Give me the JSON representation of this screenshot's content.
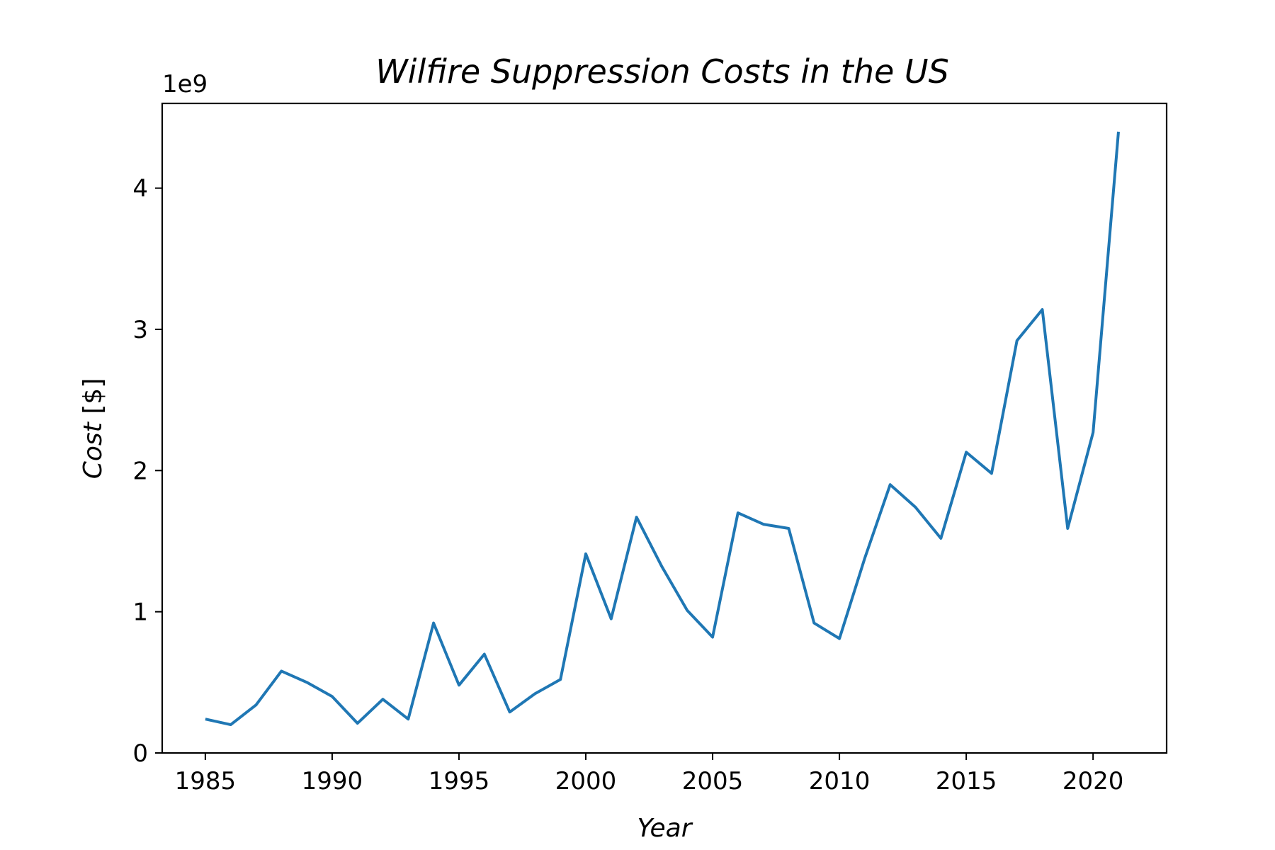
{
  "chart_data": {
    "type": "line",
    "title": "Wilfire Suppression Costs in the US",
    "xlabel": "Year",
    "ylabel_italic": "Cost",
    "ylabel_unit": "[$]",
    "y_offset_label": "1e9",
    "xlim": [
      1983.3,
      2022.9
    ],
    "ylim": [
      0,
      4.6
    ],
    "x_ticks": [
      1985,
      1990,
      1995,
      2000,
      2005,
      2010,
      2015,
      2020
    ],
    "y_ticks": [
      0,
      1,
      2,
      3,
      4
    ],
    "grid": false,
    "color": "#1f77b4",
    "x": [
      1985,
      1986,
      1987,
      1988,
      1989,
      1990,
      1991,
      1992,
      1993,
      1994,
      1995,
      1996,
      1997,
      1998,
      1999,
      2000,
      2001,
      2002,
      2003,
      2004,
      2005,
      2006,
      2007,
      2008,
      2009,
      2010,
      2011,
      2012,
      2013,
      2014,
      2015,
      2016,
      2017,
      2018,
      2019,
      2020,
      2021
    ],
    "values": [
      0.24,
      0.2,
      0.34,
      0.58,
      0.5,
      0.4,
      0.21,
      0.38,
      0.24,
      0.92,
      0.48,
      0.7,
      0.29,
      0.42,
      0.52,
      1.41,
      0.95,
      1.67,
      1.32,
      1.01,
      0.82,
      1.7,
      1.62,
      1.59,
      0.92,
      0.81,
      1.38,
      1.9,
      1.74,
      1.52,
      2.13,
      1.98,
      2.92,
      3.14,
      1.59,
      2.27,
      4.4
    ]
  }
}
